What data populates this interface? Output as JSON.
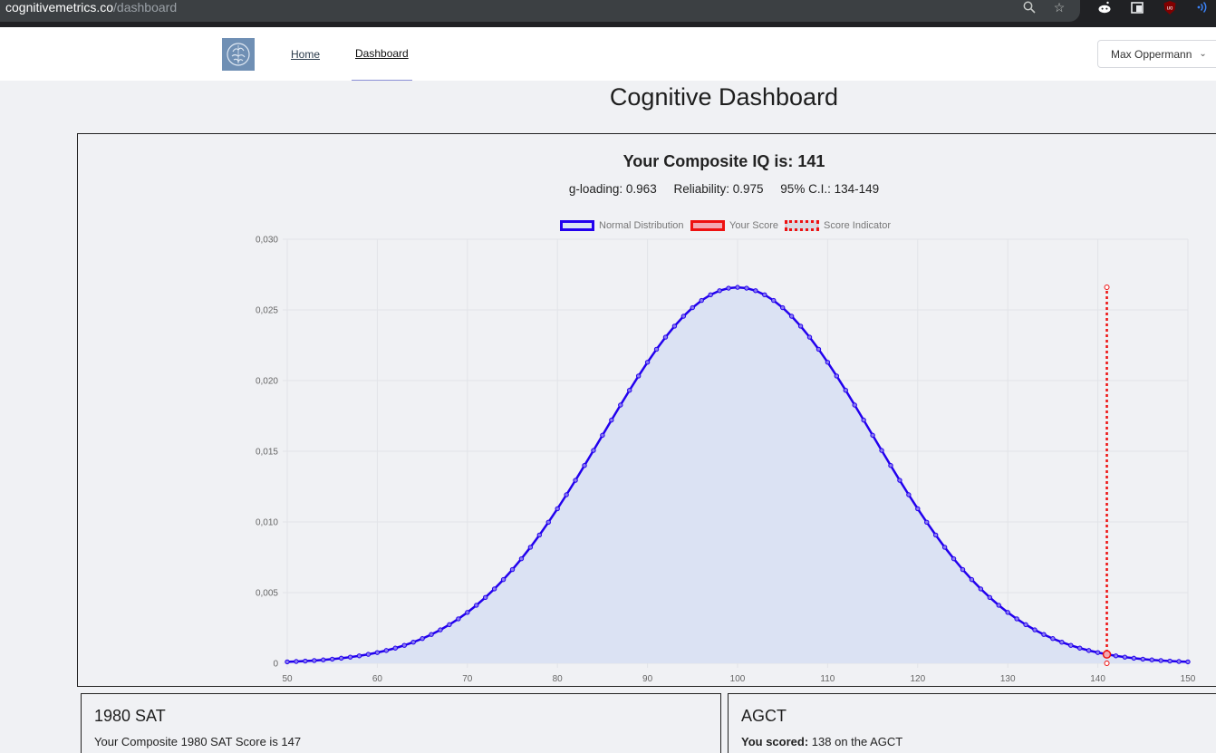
{
  "browser": {
    "url_host": "cognitivemetrics.co",
    "url_path": "/dashboard",
    "icons": [
      "zoom-icon",
      "star-icon",
      "reddit-extension-icon",
      "window-icon",
      "ublock-icon",
      "wifi-extension-icon"
    ]
  },
  "nav": {
    "home": "Home",
    "dashboard": "Dashboard",
    "user": "Max Oppermann"
  },
  "page": {
    "title": "Cognitive Dashboard"
  },
  "composite": {
    "title": "Your Composite IQ is: 141",
    "g_loading": "g-loading: 0.963",
    "reliability": "Reliability: 0.975",
    "ci": "95% C.I.: 134-149"
  },
  "legend": {
    "normal": "Normal Distribution",
    "score": "Your Score",
    "indicator": "Score Indicator"
  },
  "colors": {
    "curve": "#2200ee",
    "fill": "#dbe2f3",
    "score": "#ee1111",
    "grid": "#e2e4e8"
  },
  "chart_data": {
    "type": "area",
    "distribution": {
      "mean": 100,
      "sd": 15,
      "step": 1
    },
    "xlim": [
      50,
      150
    ],
    "ylim": [
      0,
      0.03
    ],
    "x_ticks": [
      50,
      60,
      70,
      80,
      90,
      100,
      110,
      120,
      130,
      140,
      150
    ],
    "y_ticks": [
      "0",
      "0,005",
      "0,010",
      "0,015",
      "0,020",
      "0,025",
      "0,030"
    ],
    "y_tick_values": [
      0,
      0.005,
      0.01,
      0.015,
      0.02,
      0.025,
      0.03
    ],
    "series": [
      {
        "name": "Normal Distribution",
        "type": "area"
      },
      {
        "name": "Your Score",
        "x": 141,
        "y": 0.00063
      },
      {
        "name": "Score Indicator",
        "type": "dashed-vertical",
        "x": 141,
        "y": [
          0,
          0.0266
        ]
      }
    ],
    "grid": true,
    "legend_position": "top"
  },
  "cards": [
    {
      "title": "1980 SAT",
      "text": "Your Composite 1980 SAT Score is 147",
      "bold": ""
    },
    {
      "title": "AGCT",
      "bold": "You scored:",
      "text": " 138 on the AGCT"
    }
  ]
}
